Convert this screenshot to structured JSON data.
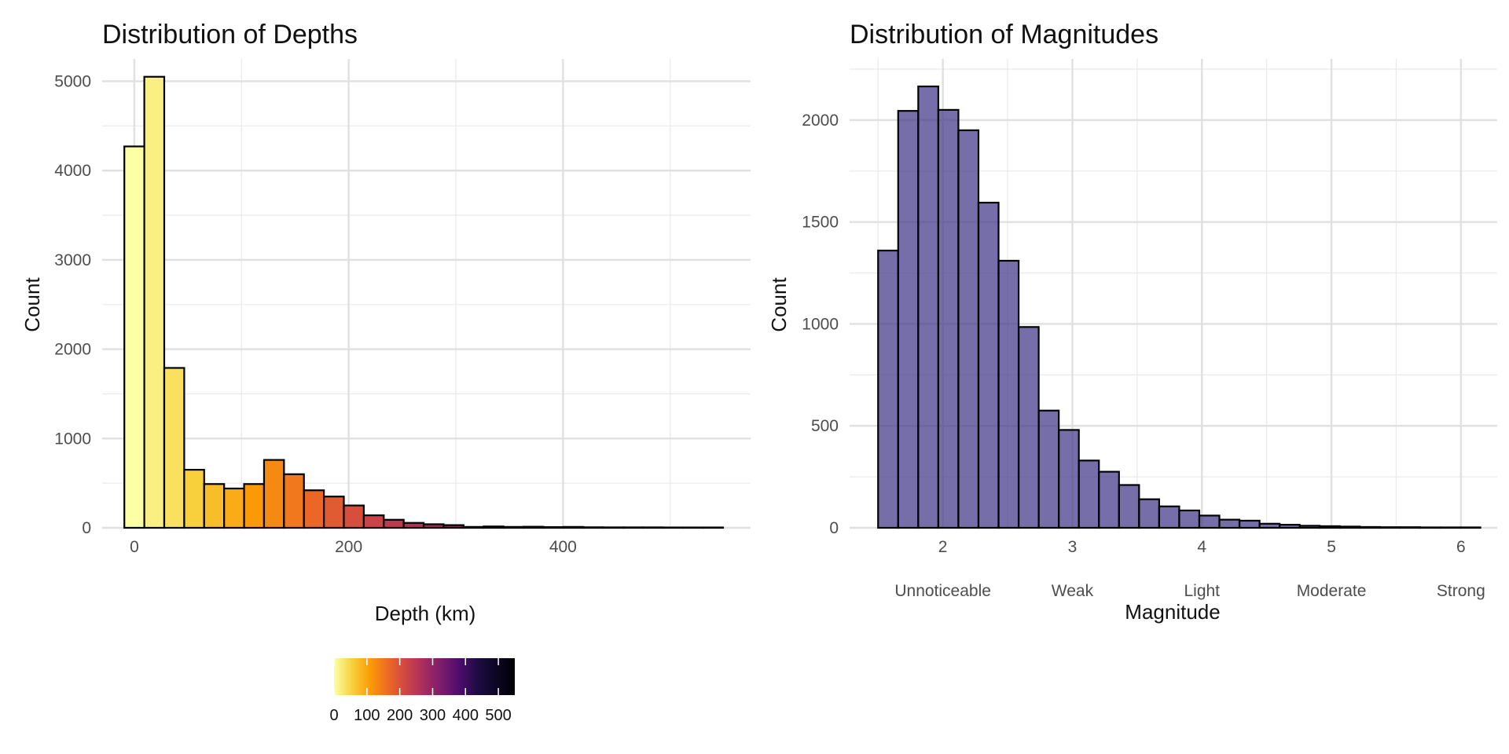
{
  "chart_data": [
    {
      "type": "bar",
      "title": "Distribution of Depths",
      "xlabel": "Depth (km)",
      "ylabel": "Count",
      "xlim": [
        -30,
        575
      ],
      "ylim": [
        0,
        5250
      ],
      "x_ticks": [
        0,
        200,
        400
      ],
      "y_ticks": [
        0,
        1000,
        2000,
        3000,
        4000,
        5000
      ],
      "bin_width": 18.62,
      "bins": [
        {
          "x0": -9.31,
          "x1": 9.31,
          "count": 4270
        },
        {
          "x0": 9.31,
          "x1": 27.93,
          "count": 5050
        },
        {
          "x0": 27.93,
          "x1": 46.55,
          "count": 1790
        },
        {
          "x0": 46.55,
          "x1": 65.17,
          "count": 650
        },
        {
          "x0": 65.17,
          "x1": 83.79,
          "count": 490
        },
        {
          "x0": 83.79,
          "x1": 102.41,
          "count": 440
        },
        {
          "x0": 102.41,
          "x1": 121.03,
          "count": 490
        },
        {
          "x0": 121.03,
          "x1": 139.65,
          "count": 760
        },
        {
          "x0": 139.65,
          "x1": 158.27,
          "count": 600
        },
        {
          "x0": 158.27,
          "x1": 176.89,
          "count": 420
        },
        {
          "x0": 176.89,
          "x1": 195.51,
          "count": 350
        },
        {
          "x0": 195.51,
          "x1": 214.13,
          "count": 250
        },
        {
          "x0": 214.13,
          "x1": 232.75,
          "count": 140
        },
        {
          "x0": 232.75,
          "x1": 251.37,
          "count": 90
        },
        {
          "x0": 251.37,
          "x1": 269.99,
          "count": 55
        },
        {
          "x0": 269.99,
          "x1": 288.61,
          "count": 40
        },
        {
          "x0": 288.61,
          "x1": 307.23,
          "count": 30
        },
        {
          "x0": 307.23,
          "x1": 325.85,
          "count": 10
        },
        {
          "x0": 325.85,
          "x1": 344.47,
          "count": 15
        },
        {
          "x0": 344.47,
          "x1": 363.09,
          "count": 10
        },
        {
          "x0": 363.09,
          "x1": 381.71,
          "count": 12
        },
        {
          "x0": 381.71,
          "x1": 400.33,
          "count": 8
        },
        {
          "x0": 400.33,
          "x1": 418.95,
          "count": 10
        },
        {
          "x0": 418.95,
          "x1": 437.57,
          "count": 6
        },
        {
          "x0": 437.57,
          "x1": 456.19,
          "count": 5
        },
        {
          "x0": 456.19,
          "x1": 474.81,
          "count": 5
        },
        {
          "x0": 474.81,
          "x1": 493.43,
          "count": 5
        },
        {
          "x0": 493.43,
          "x1": 512.05,
          "count": 4
        },
        {
          "x0": 512.05,
          "x1": 530.67,
          "count": 4
        },
        {
          "x0": 530.67,
          "x1": 549.29,
          "count": 4
        }
      ],
      "fill_scale": "inferno",
      "legend": {
        "position": "bottom",
        "ticks": [
          0,
          100,
          200,
          300,
          400,
          500
        ],
        "tick_labels": [
          "0",
          "100",
          "200",
          "300",
          "400",
          "500"
        ],
        "range": [
          0,
          550
        ]
      },
      "grid": true
    },
    {
      "type": "bar",
      "title": "Distribution of Magnitudes",
      "xlabel": "Magnitude",
      "ylabel": "Count",
      "xlim": [
        1.28,
        6.28
      ],
      "ylim": [
        0,
        2300
      ],
      "x_ticks": [
        2,
        3,
        4,
        5,
        6
      ],
      "x_tick_labels": [
        "2",
        "3",
        "4",
        "5",
        "6"
      ],
      "x_category_labels": [
        "Unnoticeable",
        "Weak",
        "Light",
        "Moderate",
        "Strong"
      ],
      "y_ticks": [
        0,
        500,
        1000,
        1500,
        2000
      ],
      "bar_color": "#483d8b",
      "bar_opacity": 0.75,
      "bins": [
        {
          "x0": 1.5,
          "x1": 1.655,
          "count": 1360
        },
        {
          "x0": 1.655,
          "x1": 1.81,
          "count": 2045
        },
        {
          "x0": 1.81,
          "x1": 1.965,
          "count": 2165
        },
        {
          "x0": 1.965,
          "x1": 2.12,
          "count": 2050
        },
        {
          "x0": 2.12,
          "x1": 2.275,
          "count": 1950
        },
        {
          "x0": 2.275,
          "x1": 2.43,
          "count": 1595
        },
        {
          "x0": 2.43,
          "x1": 2.585,
          "count": 1310
        },
        {
          "x0": 2.585,
          "x1": 2.74,
          "count": 985
        },
        {
          "x0": 2.74,
          "x1": 2.895,
          "count": 575
        },
        {
          "x0": 2.895,
          "x1": 3.05,
          "count": 480
        },
        {
          "x0": 3.05,
          "x1": 3.205,
          "count": 330
        },
        {
          "x0": 3.205,
          "x1": 3.36,
          "count": 275
        },
        {
          "x0": 3.36,
          "x1": 3.515,
          "count": 210
        },
        {
          "x0": 3.515,
          "x1": 3.67,
          "count": 140
        },
        {
          "x0": 3.67,
          "x1": 3.825,
          "count": 105
        },
        {
          "x0": 3.825,
          "x1": 3.98,
          "count": 85
        },
        {
          "x0": 3.98,
          "x1": 4.135,
          "count": 60
        },
        {
          "x0": 4.135,
          "x1": 4.29,
          "count": 40
        },
        {
          "x0": 4.29,
          "x1": 4.445,
          "count": 35
        },
        {
          "x0": 4.445,
          "x1": 4.6,
          "count": 20
        },
        {
          "x0": 4.6,
          "x1": 4.755,
          "count": 15
        },
        {
          "x0": 4.755,
          "x1": 4.91,
          "count": 10
        },
        {
          "x0": 4.91,
          "x1": 5.065,
          "count": 8
        },
        {
          "x0": 5.065,
          "x1": 5.22,
          "count": 6
        },
        {
          "x0": 5.22,
          "x1": 5.375,
          "count": 4
        },
        {
          "x0": 5.375,
          "x1": 5.53,
          "count": 3
        },
        {
          "x0": 5.53,
          "x1": 5.685,
          "count": 3
        },
        {
          "x0": 5.685,
          "x1": 5.84,
          "count": 2
        },
        {
          "x0": 5.84,
          "x1": 5.995,
          "count": 2
        },
        {
          "x0": 5.995,
          "x1": 6.15,
          "count": 2
        }
      ],
      "grid": true
    }
  ]
}
